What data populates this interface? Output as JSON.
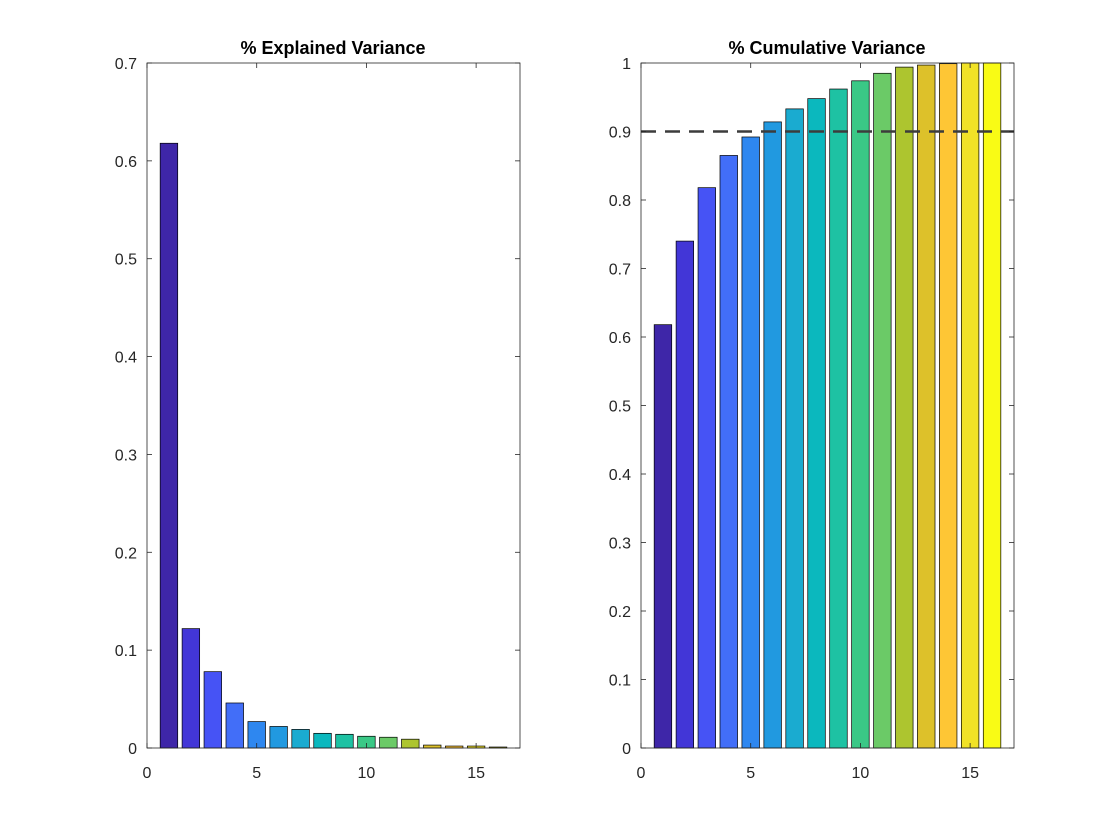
{
  "chart_data": [
    {
      "type": "bar",
      "title": "% Explained Variance",
      "xlabel": "",
      "ylabel": "",
      "x": [
        1,
        2,
        3,
        4,
        5,
        6,
        7,
        8,
        9,
        10,
        11,
        12,
        13,
        14,
        15,
        16
      ],
      "values": [
        0.618,
        0.122,
        0.078,
        0.046,
        0.027,
        0.022,
        0.019,
        0.015,
        0.014,
        0.012,
        0.011,
        0.009,
        0.003,
        0.002,
        0.002,
        0.001
      ],
      "xlim": [
        0,
        17
      ],
      "ylim": [
        0,
        0.7
      ],
      "xticks": [
        0,
        5,
        10,
        15
      ],
      "yticks": [
        0,
        0.1,
        0.2,
        0.3,
        0.4,
        0.5,
        0.6,
        0.7
      ],
      "xtick_labels": [
        "0",
        "5",
        "10",
        "15"
      ],
      "ytick_labels": [
        "0",
        "0.1",
        "0.2",
        "0.3",
        "0.4",
        "0.5",
        "0.6",
        "0.7"
      ],
      "grid": false,
      "colors": [
        "#3E26A8",
        "#4236D7",
        "#4653F5",
        "#426EF8",
        "#2E87F0",
        "#2199E0",
        "#1AABD0",
        "#0BB8BE",
        "#1EC2A3",
        "#3AC886",
        "#6BCA67",
        "#ADC52F",
        "#DDC12A",
        "#FEC635",
        "#F1E227",
        "#F9FB15"
      ]
    },
    {
      "type": "bar",
      "title": "% Cumulative Variance",
      "xlabel": "",
      "ylabel": "",
      "x": [
        1,
        2,
        3,
        4,
        5,
        6,
        7,
        8,
        9,
        10,
        11,
        12,
        13,
        14,
        15,
        16
      ],
      "values": [
        0.618,
        0.74,
        0.818,
        0.865,
        0.892,
        0.914,
        0.933,
        0.948,
        0.962,
        0.974,
        0.985,
        0.994,
        0.997,
        0.999,
        1.0,
        1.0
      ],
      "xlim": [
        0,
        17
      ],
      "ylim": [
        0,
        1
      ],
      "xticks": [
        0,
        5,
        10,
        15
      ],
      "yticks": [
        0,
        0.1,
        0.2,
        0.3,
        0.4,
        0.5,
        0.6,
        0.7,
        0.8,
        0.9,
        1
      ],
      "xtick_labels": [
        "0",
        "5",
        "10",
        "15"
      ],
      "ytick_labels": [
        "0",
        "0.1",
        "0.2",
        "0.3",
        "0.4",
        "0.5",
        "0.6",
        "0.7",
        "0.8",
        "0.9",
        "1"
      ],
      "reference_line": {
        "y": 0.9,
        "style": "dashed",
        "color": "#3C3C3C"
      },
      "grid": false,
      "colors": [
        "#3E26A8",
        "#4236D7",
        "#4653F5",
        "#426EF8",
        "#2E87F0",
        "#2199E0",
        "#1AABD0",
        "#0BB8BE",
        "#1EC2A3",
        "#3AC886",
        "#6BCA67",
        "#ADC52F",
        "#DDC12A",
        "#FEC635",
        "#F1E227",
        "#F9FB15"
      ]
    }
  ]
}
